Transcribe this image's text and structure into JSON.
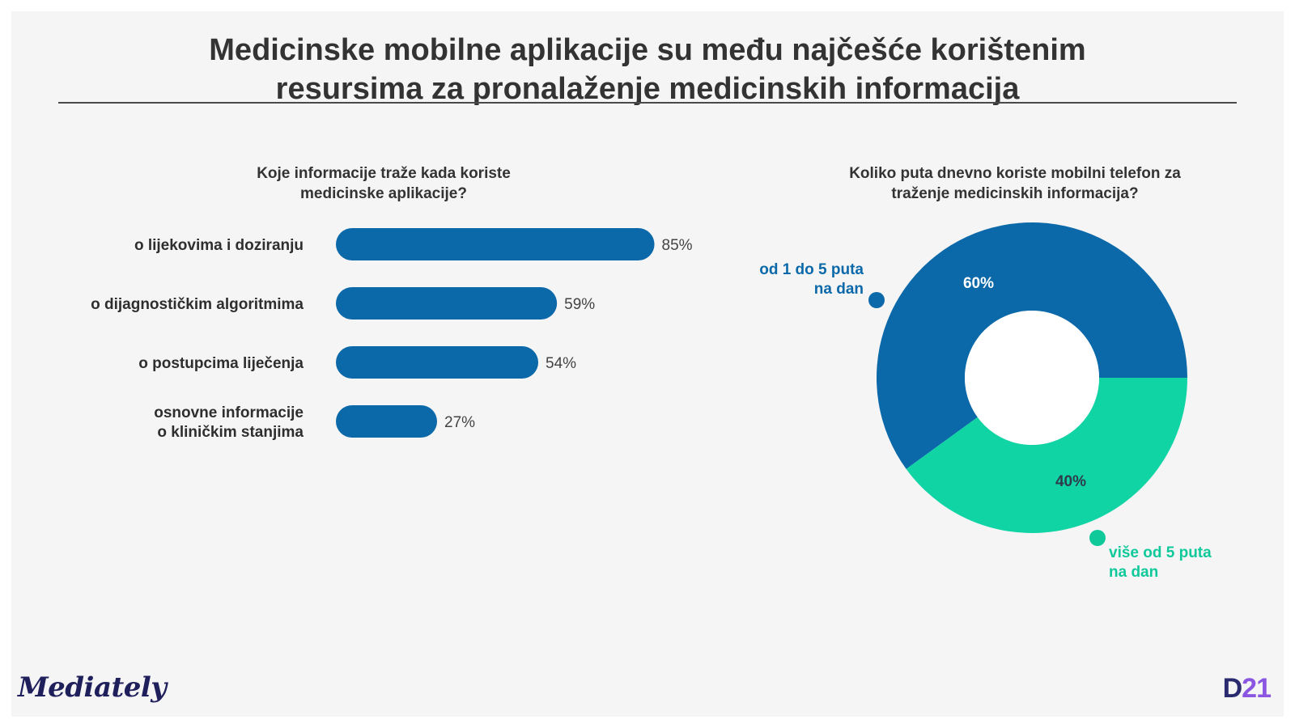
{
  "title": {
    "line1": "Medicinske mobilne aplikacije su među najčešće korištenim",
    "line2": "resursima za pronalaženje medicinskih informacija"
  },
  "chart_data": [
    {
      "type": "bar",
      "orientation": "horizontal",
      "title_lines": [
        "Koje informacije traže kada koriste",
        "medicinske aplikacije?"
      ],
      "categories": [
        [
          "o lijekovima i doziranju"
        ],
        [
          "o dijagnostičkim algoritmima"
        ],
        [
          "o postupcima liječenja"
        ],
        [
          "osnovne informacije",
          "o kliničkim stanjima"
        ]
      ],
      "values": [
        85,
        59,
        54,
        27
      ],
      "value_labels": [
        "85%",
        "59%",
        "54%",
        "27%"
      ],
      "unit": "%",
      "xlim": [
        0,
        100
      ],
      "color": "#0b69aa"
    },
    {
      "type": "pie",
      "variant": "donut",
      "title_lines": [
        "Koliko puta dnevno koriste mobilni telefon za",
        "traženje medicinskih informacija?"
      ],
      "slices": [
        {
          "label_lines": [
            "od 1 do 5 puta",
            "na dan"
          ],
          "value": 60,
          "value_label": "60%",
          "color": "#0b69aa",
          "label_color": "#ffffff"
        },
        {
          "label_lines": [
            "više od 5 puta",
            "na dan"
          ],
          "value": 40,
          "value_label": "40%",
          "color": "#10d4a4",
          "label_color": "#2e3b4a"
        }
      ],
      "legend_colors": [
        "#0b69aa",
        "#0fc99b"
      ]
    }
  ],
  "footer": {
    "brand": "Mediately",
    "logo_d": "D",
    "logo_num": "21"
  }
}
